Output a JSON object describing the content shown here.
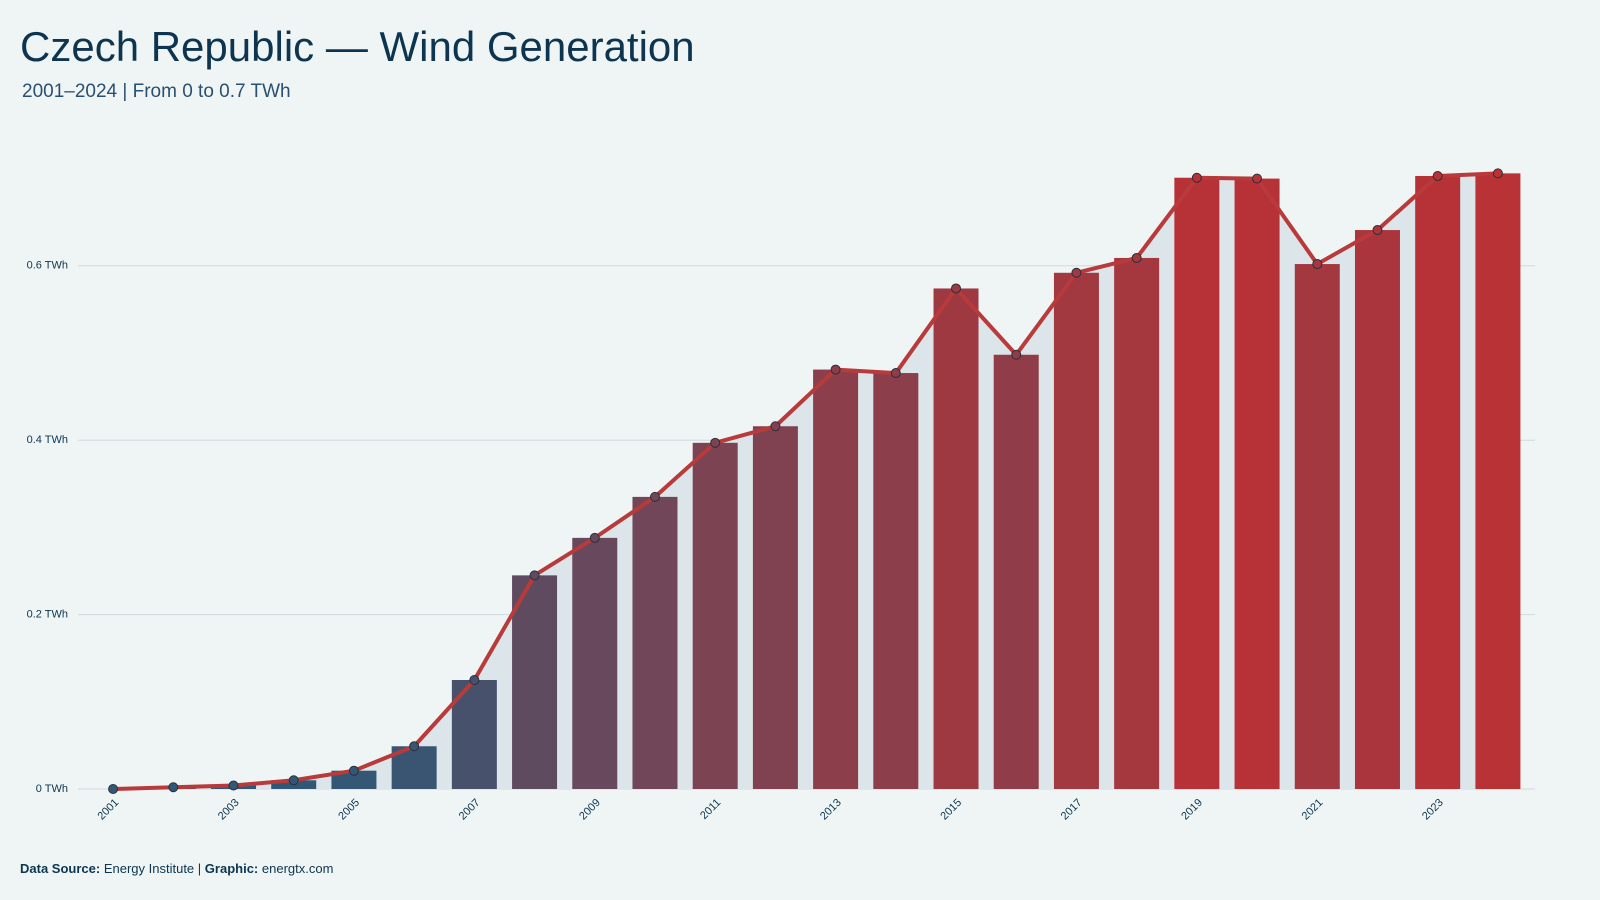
{
  "chart_data": {
    "type": "bar-line",
    "title": "Czech Republic — Wind Generation",
    "subtitle": "2001–2024 | From 0 to 0.7 TWh",
    "categories": [
      "2001",
      null,
      "2003",
      null,
      "2005",
      null,
      "2007",
      null,
      "2009",
      null,
      "2011",
      null,
      "2013",
      null,
      "2015",
      null,
      "2017",
      null,
      "2019",
      null,
      "2021",
      null,
      "2023",
      null
    ],
    "values": [
      0.0,
      0.002,
      0.004,
      0.01,
      0.021,
      0.049,
      0.125,
      0.245,
      0.288,
      0.335,
      0.397,
      0.416,
      0.481,
      0.477,
      0.574,
      0.498,
      0.592,
      0.609,
      0.701,
      0.7,
      0.602,
      0.641,
      0.703,
      0.706
    ],
    "color_scale": [
      "#2f5877",
      "#b83236"
    ],
    "line_color": "#b83a3a",
    "area_color": "#dbe5ea",
    "ylim": [
      0,
      0.75
    ],
    "yticks": [
      {
        "value": 0,
        "label": "0 TWh"
      },
      {
        "value": 0.2,
        "label": "0.2 TWh"
      },
      {
        "value": 0.4,
        "label": "0.4 TWh"
      },
      {
        "value": 0.6,
        "label": "0.6 TWh"
      }
    ],
    "grid": true,
    "footer": {
      "source_label": "Data Source:",
      "source": "Energy Institute",
      "separator": "|",
      "graphic_label": "Graphic:",
      "graphic": "energtx.com"
    }
  }
}
